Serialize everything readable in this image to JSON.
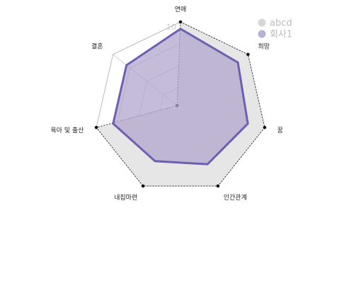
{
  "chart_data": {
    "type": "radar",
    "categories": [
      "연애",
      "희망",
      "꿈",
      "인간관계",
      "내집마련",
      "육아 및 출산",
      "결혼"
    ],
    "r_max": 10,
    "tick_label": "10",
    "series": [
      {
        "name": "abcd",
        "values": [
          10,
          10,
          10,
          10,
          10,
          10,
          0.5
        ],
        "fill": "#e6e6e6",
        "stroke": "#222222",
        "marker": "#111111",
        "line_style": "dashed"
      },
      {
        "name": "회사1",
        "values": [
          9.2,
          8.5,
          8.0,
          7.2,
          6.8,
          8.0,
          8.0
        ],
        "fill": "#b0a6cc",
        "stroke": "#6f5fb0",
        "line_style": "solid"
      }
    ],
    "grid": true,
    "legend_position": "top-right",
    "colors": {
      "grid": "#aaaaaa",
      "legend_abcd": "#d6d6d6",
      "legend_company": "#b9b2d6"
    }
  }
}
